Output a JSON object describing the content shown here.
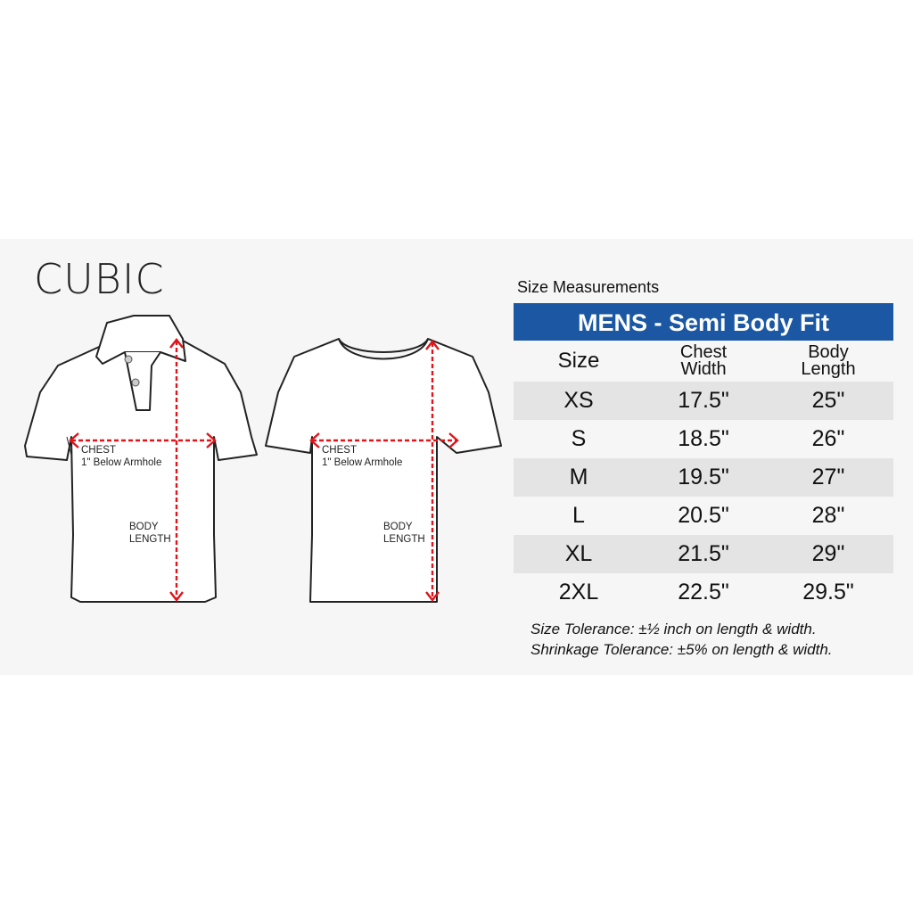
{
  "brand": "CUBIC",
  "diagrams": {
    "polo": {
      "chest_label": "CHEST",
      "chest_sub": "1\" Below Armhole",
      "length_label_1": "BODY",
      "length_label_2": "LENGTH"
    },
    "tee": {
      "chest_label": "CHEST",
      "chest_sub": "1\" Below Armhole",
      "length_label_1": "BODY",
      "length_label_2": "LENGTH"
    },
    "arrow_color": "#e0141b"
  },
  "size_chart": {
    "caption": "Size Measurements",
    "title": "MENS - Semi Body Fit",
    "header_color": "#1b57a3",
    "columns": [
      {
        "line1": "Size",
        "line2": ""
      },
      {
        "line1": "Chest",
        "line2": "Width"
      },
      {
        "line1": "Body",
        "line2": "Length"
      }
    ],
    "rows": [
      [
        "XS",
        "17.5\"",
        "25\""
      ],
      [
        "S",
        "18.5\"",
        "26\""
      ],
      [
        "M",
        "19.5\"",
        "27\""
      ],
      [
        "L",
        "20.5\"",
        "28\""
      ],
      [
        "XL",
        "21.5\"",
        "29\""
      ],
      [
        "2XL",
        "22.5\"",
        "29.5\""
      ]
    ],
    "notes": [
      "Size Tolerance: ±½ inch on length & width.",
      "Shrinkage Tolerance: ±5% on length & width."
    ]
  }
}
